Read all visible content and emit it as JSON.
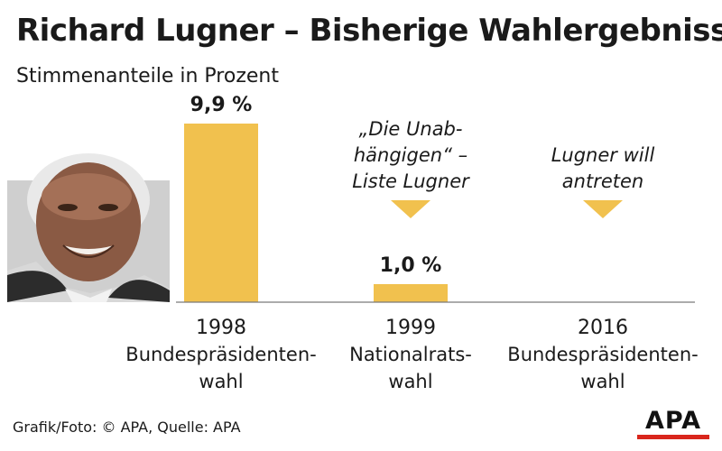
{
  "title": "Richard Lugner – Bisherige Wahlergebnisse",
  "subtitle": "Stimmenanteile in Prozent",
  "footer": "Grafik/Foto: © APA, Quelle: APA",
  "logo": "APA",
  "colors": {
    "bar": "#f1c14e",
    "text": "#1a1a1a",
    "baseline": "#7a7a7a",
    "logo_accent": "#d9261c"
  },
  "photo": {
    "icon": "portrait-photo-icon"
  },
  "chart_data": {
    "type": "bar",
    "title": "Richard Lugner – Bisherige Wahlergebnisse",
    "ylabel": "Stimmenanteile in Prozent",
    "ylim": [
      0,
      12
    ],
    "categories": [
      {
        "year": "1998",
        "label_lines": [
          "Bundespräsidenten-",
          "wahl"
        ]
      },
      {
        "year": "1999",
        "label_lines": [
          "Nationalrats-",
          "wahl"
        ]
      },
      {
        "year": "2016",
        "label_lines": [
          "Bundespräsidenten-",
          "wahl"
        ]
      }
    ],
    "values": [
      9.9,
      1.0,
      null
    ],
    "value_labels": [
      "9,9 %",
      "1,0 %",
      ""
    ],
    "annotations": [
      null,
      {
        "lines": [
          "„Die Unab-",
          "hängigen“ –",
          "Liste Lugner"
        ]
      },
      {
        "lines": [
          "Lugner will",
          "antreten"
        ]
      }
    ]
  }
}
